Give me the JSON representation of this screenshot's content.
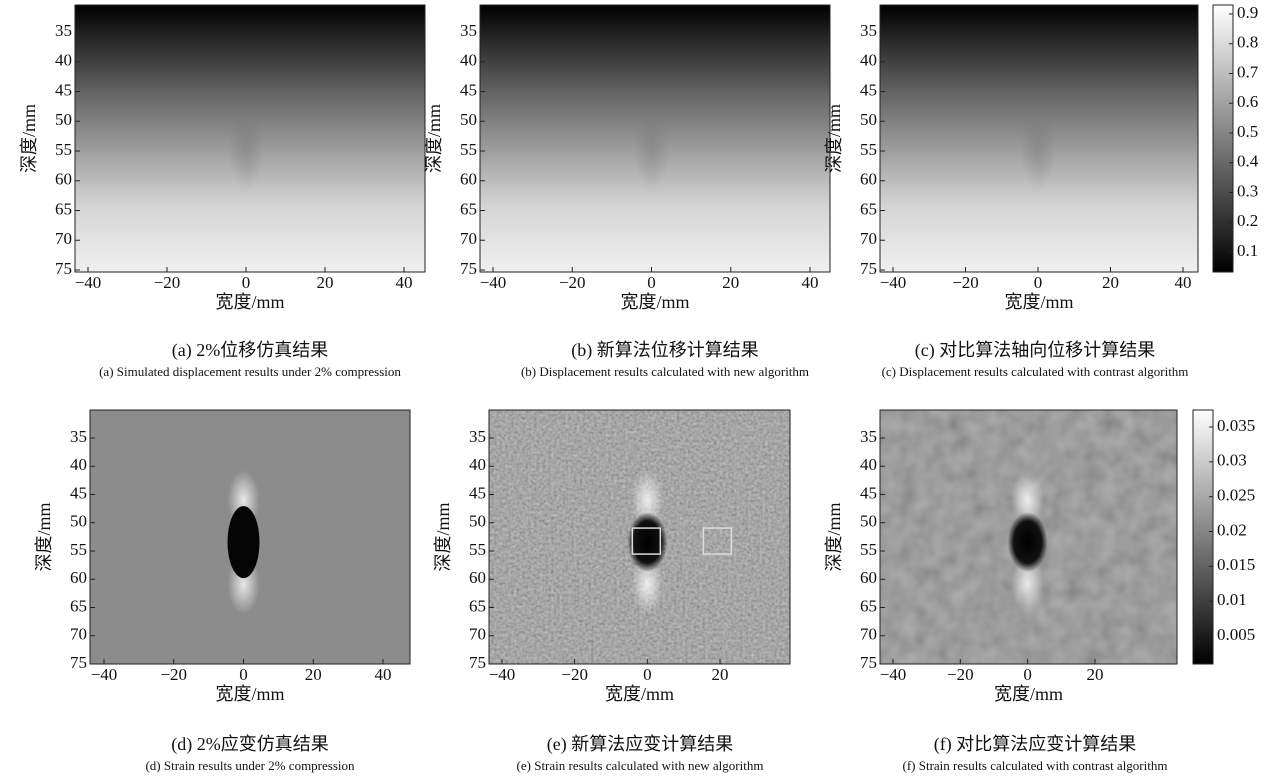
{
  "panels": [
    {
      "xticks": [
        "−40",
        "−20",
        "0",
        "20",
        "40"
      ],
      "yticks": [
        "35",
        "40",
        "45",
        "50",
        "55",
        "60",
        "65",
        "70",
        "75"
      ],
      "xlabel": "宽度/mm",
      "ylabel": "深度/mm",
      "caption_cn": "(a) 2%位移仿真结果",
      "caption_en": "(a) Simulated displacement results under 2% compression"
    },
    {
      "xticks": [
        "−40",
        "−20",
        "0",
        "20",
        "40"
      ],
      "yticks": [
        "35",
        "40",
        "45",
        "50",
        "55",
        "60",
        "65",
        "70",
        "75"
      ],
      "xlabel": "宽度/mm",
      "ylabel": "深度/mm",
      "caption_cn": "(b) 新算法位移计算结果",
      "caption_en": "(b) Displacement results calculated with new algorithm"
    },
    {
      "xticks": [
        "−40",
        "−20",
        "0",
        "20",
        "40"
      ],
      "yticks": [
        "35",
        "40",
        "45",
        "50",
        "55",
        "60",
        "65",
        "70",
        "75"
      ],
      "xlabel": "宽度/mm",
      "ylabel": "深度/mm",
      "caption_cn": "(c) 对比算法轴向位移计算结果",
      "caption_en": "(c) Displacement results calculated with contrast algorithm"
    },
    {
      "xticks": [
        "−40",
        "−20",
        "0",
        "20",
        "40"
      ],
      "yticks": [
        "35",
        "40",
        "45",
        "50",
        "55",
        "60",
        "65",
        "70",
        "75"
      ],
      "xlabel": "宽度/mm",
      "ylabel": "深度/mm",
      "caption_cn": "(d) 2%应变仿真结果",
      "caption_en": "(d) Strain results under 2% compression"
    },
    {
      "xticks": [
        "−40",
        "−20",
        "0",
        "20"
      ],
      "yticks": [
        "35",
        "40",
        "45",
        "50",
        "55",
        "60",
        "65",
        "70",
        "75"
      ],
      "xlabel": "宽度/mm",
      "ylabel": "深度/mm",
      "caption_cn": "(e) 新算法应变计算结果",
      "caption_en": "(e) Strain results calculated with new algorithm"
    },
    {
      "xticks": [
        "−40",
        "−20",
        "0",
        "20"
      ],
      "yticks": [
        "35",
        "40",
        "45",
        "50",
        "55",
        "60",
        "65",
        "70",
        "75"
      ],
      "xlabel": "宽度/mm",
      "ylabel": "深度/mm",
      "caption_cn": "(f) 对比算法应变计算结果",
      "caption_en": "(f) Strain results calculated with contrast algorithm"
    }
  ],
  "colorbars": [
    {
      "ticks": [
        "0.9",
        "0.8",
        "0.7",
        "0.6",
        "0.5",
        "0.4",
        "0.3",
        "0.2",
        "0.1"
      ]
    },
    {
      "ticks": [
        "0.035",
        "0.03",
        "0.025",
        "0.02",
        "0.015",
        "0.01",
        "0.005"
      ]
    }
  ]
}
